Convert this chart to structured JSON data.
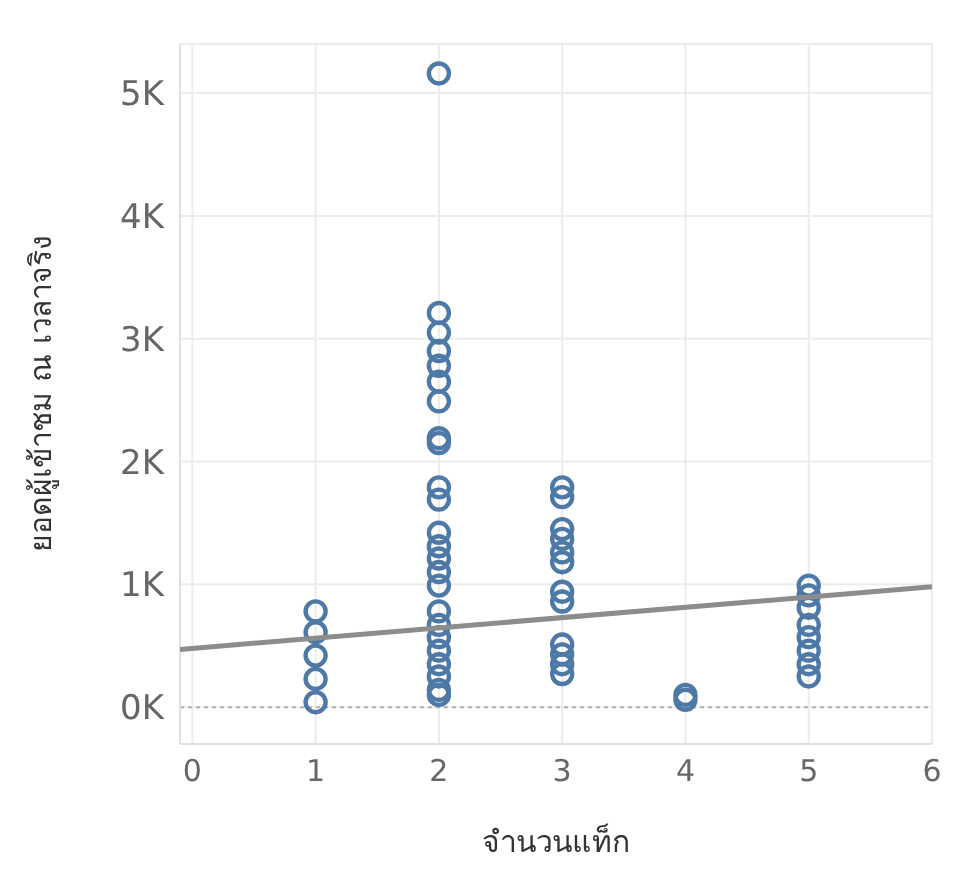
{
  "chart_data": {
    "type": "scatter",
    "xlabel": "จำนวนแท็ก",
    "ylabel": "ยอดผู้เข้าชม ณ เวลาจริง",
    "xlim": [
      -0.1,
      6
    ],
    "xticks": [
      0,
      1,
      2,
      3,
      4,
      5,
      6
    ],
    "ylim": [
      -300,
      5400
    ],
    "yticks": [
      {
        "value": 0,
        "label": "0K"
      },
      {
        "value": 1000,
        "label": "1K"
      },
      {
        "value": 2000,
        "label": "2K"
      },
      {
        "value": 3000,
        "label": "3K"
      },
      {
        "value": 4000,
        "label": "4K"
      },
      {
        "value": 5000,
        "label": "5K"
      }
    ],
    "grid": true,
    "marker": "circle",
    "ref_lines": [
      {
        "axis": "y",
        "value": 0,
        "label": null,
        "color": "#b0b0b0",
        "line_style": "dotted"
      }
    ],
    "series": [
      {
        "color": "#4e79a7",
        "x": [
          1,
          1,
          1,
          1,
          1,
          2,
          2,
          2,
          2,
          2,
          2,
          2,
          2,
          2,
          2,
          2,
          2,
          2,
          2,
          2,
          2,
          2,
          2,
          2,
          2,
          2,
          2,
          2,
          2,
          3,
          3,
          3,
          3,
          3,
          3,
          3,
          3,
          3,
          3,
          3,
          3,
          4,
          4,
          5,
          5,
          5,
          5,
          5,
          5,
          5,
          5
        ],
        "values": [
          780,
          610,
          420,
          230,
          40,
          5160,
          3210,
          3050,
          2900,
          2780,
          2650,
          2490,
          2190,
          2150,
          1790,
          1690,
          1420,
          1310,
          1210,
          1100,
          990,
          780,
          670,
          570,
          460,
          350,
          250,
          140,
          100,
          1790,
          1710,
          1450,
          1370,
          1260,
          1180,
          940,
          860,
          510,
          430,
          350,
          270,
          100,
          60,
          990,
          910,
          810,
          670,
          570,
          460,
          350,
          250
        ]
      },
      {
        "type": "line",
        "color": "#8c8c8c",
        "marker": "none",
        "x": [
          -0.1,
          6
        ],
        "values": [
          470,
          980
        ]
      }
    ]
  }
}
